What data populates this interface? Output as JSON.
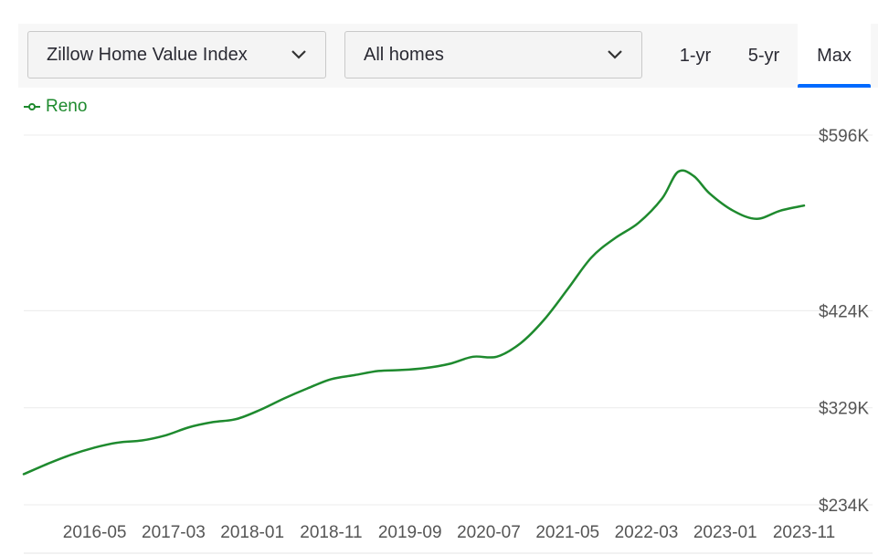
{
  "controls": {
    "metric_select": "Zillow Home Value Index",
    "type_select": "All homes",
    "tabs": [
      {
        "label": "1-yr",
        "active": false
      },
      {
        "label": "5-yr",
        "active": false
      },
      {
        "label": "Max",
        "active": true
      }
    ]
  },
  "colors": {
    "series": "#1e8a2e",
    "accent": "#006aff"
  },
  "chart_data": {
    "type": "line",
    "legend_placement": "top-left",
    "grid": true,
    "y_tick_labels": [
      "$596K",
      "$424K",
      "$329K",
      "$234K"
    ],
    "y_tick_values": [
      596000,
      424000,
      329000,
      234000
    ],
    "ylim": [
      234000,
      596000
    ],
    "x_tick_labels": [
      "2016-05",
      "2017-03",
      "2018-01",
      "2018-11",
      "2019-09",
      "2020-07",
      "2021-05",
      "2022-03",
      "2023-01",
      "2023-11"
    ],
    "xlim": [
      "2015-08",
      "2023-11"
    ],
    "series": [
      {
        "name": "Reno",
        "points": [
          [
            "2015-08",
            264000
          ],
          [
            "2015-11",
            274000
          ],
          [
            "2016-02",
            283000
          ],
          [
            "2016-05",
            290000
          ],
          [
            "2016-08",
            295000
          ],
          [
            "2016-11",
            297000
          ],
          [
            "2017-02",
            302000
          ],
          [
            "2017-05",
            310000
          ],
          [
            "2017-08",
            315000
          ],
          [
            "2017-11",
            318000
          ],
          [
            "2018-02",
            327000
          ],
          [
            "2018-05",
            338000
          ],
          [
            "2018-08",
            348000
          ],
          [
            "2018-11",
            357000
          ],
          [
            "2019-02",
            361000
          ],
          [
            "2019-05",
            365000
          ],
          [
            "2019-08",
            366000
          ],
          [
            "2019-11",
            368000
          ],
          [
            "2020-02",
            372000
          ],
          [
            "2020-05",
            379000
          ],
          [
            "2020-08",
            379000
          ],
          [
            "2020-11",
            392000
          ],
          [
            "2021-02",
            415000
          ],
          [
            "2021-05",
            445000
          ],
          [
            "2021-08",
            476000
          ],
          [
            "2021-11",
            495000
          ],
          [
            "2022-02",
            510000
          ],
          [
            "2022-05",
            534000
          ],
          [
            "2022-07",
            560000
          ],
          [
            "2022-09",
            556000
          ],
          [
            "2022-11",
            539000
          ],
          [
            "2023-02",
            522000
          ],
          [
            "2023-05",
            514000
          ],
          [
            "2023-08",
            522000
          ],
          [
            "2023-11",
            527000
          ]
        ]
      }
    ]
  }
}
